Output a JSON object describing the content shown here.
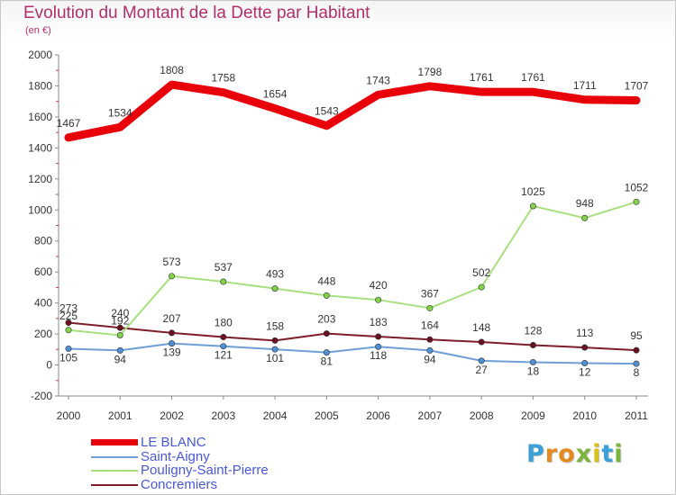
{
  "title": "Evolution du Montant de la Dette par Habitant",
  "unit": "(en €)",
  "logo": {
    "text": "Proxiti",
    "letters": [
      "P",
      "r",
      "o",
      "x",
      "i",
      "t",
      "i"
    ],
    "colors": [
      "#3aa0d8",
      "#e58a1f",
      "#e58a1f",
      "#7ab43a",
      "#d8c21a",
      "#3aa0d8",
      "#7ab43a"
    ]
  },
  "chart_data": {
    "type": "line",
    "x": [
      "2000",
      "2001",
      "2002",
      "2003",
      "2004",
      "2005",
      "2006",
      "2007",
      "2008",
      "2009",
      "2010",
      "2011"
    ],
    "ylim": [
      -200,
      2000
    ],
    "yticks": [
      -200,
      0,
      200,
      400,
      600,
      800,
      1000,
      1200,
      1400,
      1600,
      1800,
      2000
    ],
    "grid": false,
    "legend_position": "bottom-left",
    "series": [
      {
        "name": "LE BLANC",
        "values": [
          1467,
          1534,
          1808,
          1758,
          1654,
          1543,
          1743,
          1798,
          1761,
          1761,
          1711,
          1707
        ],
        "color": "#e8000b",
        "width": 9,
        "marker": false
      },
      {
        "name": "Saint-Aigny",
        "values": [
          105,
          94,
          139,
          121,
          101,
          81,
          118,
          94,
          27,
          18,
          12,
          8
        ],
        "color": "#6f9fd6",
        "width": 2,
        "marker": true,
        "marker_color": "#4f91d4"
      },
      {
        "name": "Pouligny-Saint-Pierre",
        "values": [
          225,
          192,
          573,
          537,
          493,
          448,
          420,
          367,
          502,
          1025,
          948,
          1052
        ],
        "color": "#a8e080",
        "width": 2,
        "marker": true,
        "marker_color": "#82d24a"
      },
      {
        "name": "Concremiers",
        "values": [
          273,
          240,
          207,
          180,
          158,
          203,
          183,
          164,
          148,
          128,
          113,
          95
        ],
        "color": "#7d1e2a",
        "width": 2,
        "marker": true,
        "marker_color": "#6a1020"
      }
    ]
  }
}
